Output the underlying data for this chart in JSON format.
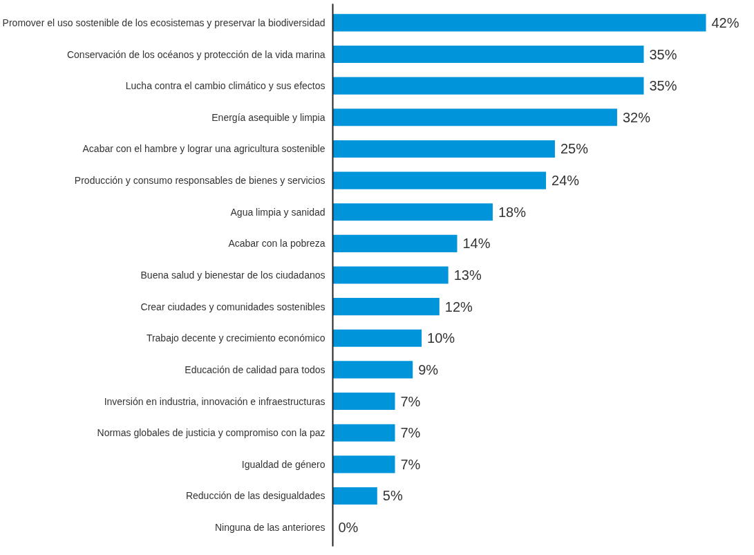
{
  "chart_data": {
    "type": "bar",
    "orientation": "horizontal",
    "value_labels": [
      "42%",
      "35%",
      "35%",
      "32%",
      "25%",
      "24%",
      "18%",
      "14%",
      "13%",
      "12%",
      "10%",
      "9%",
      "7%",
      "7%",
      "7%",
      "5%",
      "0%"
    ],
    "categories": [
      "Promover el uso sostenible de los ecosistemas y preservar la biodiversidad",
      "Conservación de los océanos y protección de la vida marina",
      "Lucha contra el cambio climático y sus efectos",
      "Energía asequible y limpia",
      "Acabar con el hambre y lograr una agricultura sostenible",
      "Producción y consumo responsables de bienes y servicios",
      "Agua limpia y sanidad",
      "Acabar con la pobreza",
      "Buena salud y bienestar de los ciudadanos",
      "Crear ciudades y comunidades sostenibles",
      "Trabajo decente y crecimiento económico",
      "Educación de calidad para todos",
      "Inversión en industria, innovación e infraestructuras",
      "Normas globales de justicia y compromiso con la paz",
      "Igualdad de género",
      "Reducción de las desigualdades",
      "Ninguna de las anteriores"
    ],
    "values": [
      42,
      35,
      35,
      32,
      25,
      24,
      18,
      14,
      13,
      12,
      10,
      9,
      7,
      7,
      7,
      5,
      0
    ],
    "color": "#0095da"
  }
}
